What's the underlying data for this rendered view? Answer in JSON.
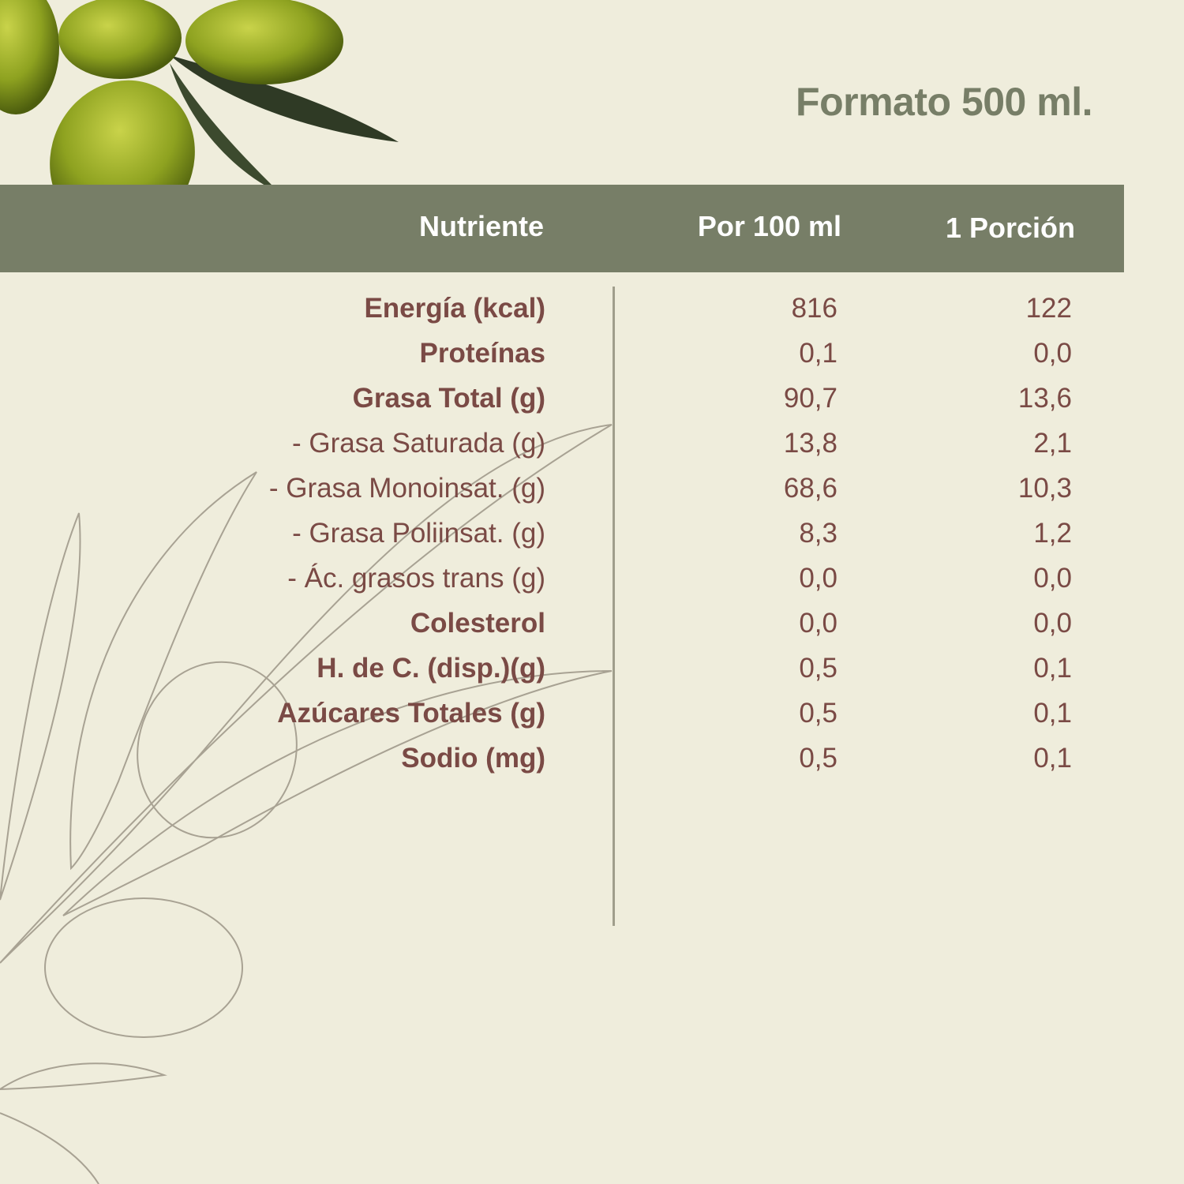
{
  "title": "Formato 500 ml.",
  "colors": {
    "background": "#efeddc",
    "header": "#777e67",
    "text": "#7a4a45",
    "title": "#777e67"
  },
  "header": {
    "nutrient": "Nutriente",
    "per100": "Por 100 ml",
    "portion": "1 Porción"
  },
  "rows": [
    {
      "label": "Energía (kcal)",
      "per100": "816",
      "portion": "122",
      "bold": true
    },
    {
      "label": "Proteínas",
      "per100": "0,1",
      "portion": "0,0",
      "bold": true
    },
    {
      "label": "Grasa Total (g)",
      "per100": "90,7",
      "portion": "13,6",
      "bold": true
    },
    {
      "label": "- Grasa Saturada (g)",
      "per100": "13,8",
      "portion": "2,1",
      "bold": false
    },
    {
      "label": "- Grasa Monoinsat. (g)",
      "per100": "68,6",
      "portion": "10,3",
      "bold": false
    },
    {
      "label": "- Grasa Poliinsat. (g)",
      "per100": "8,3",
      "portion": "1,2",
      "bold": false
    },
    {
      "label": "- Ác. grasos trans (g)",
      "per100": "0,0",
      "portion": "0,0",
      "bold": false
    },
    {
      "label": "Colesterol",
      "per100": "0,0",
      "portion": "0,0",
      "bold": true
    },
    {
      "label": "H. de C. (disp.)(g)",
      "per100": "0,5",
      "portion": "0,1",
      "bold": true
    },
    {
      "label": "Azúcares Totales (g)",
      "per100": "0,5",
      "portion": "0,1",
      "bold": true
    },
    {
      "label": "Sodio (mg)",
      "per100": "0,5",
      "portion": "0,1",
      "bold": true
    }
  ]
}
